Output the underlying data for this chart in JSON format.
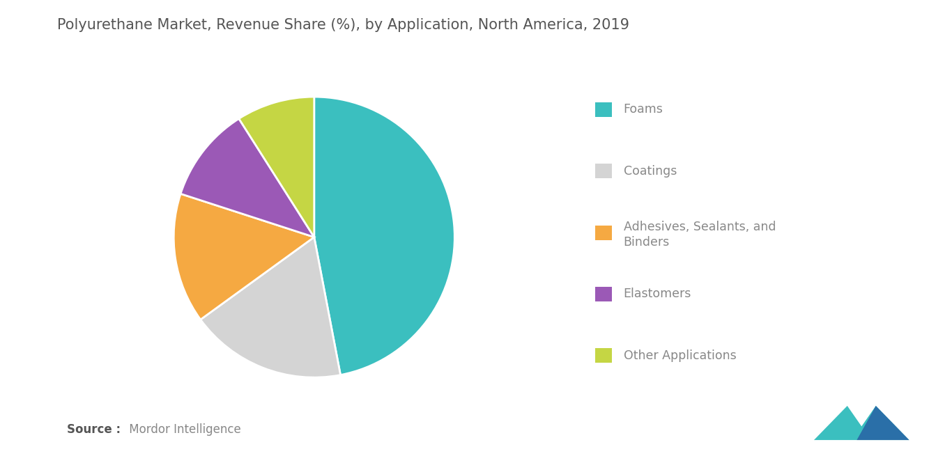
{
  "title": "Polyurethane Market, Revenue Share (%), by Application, North America, 2019",
  "title_fontsize": 15,
  "title_color": "#555555",
  "slices": [
    {
      "label": "Foams",
      "value": 47,
      "color": "#3bbfbf"
    },
    {
      "label": "Coatings",
      "value": 18,
      "color": "#d4d4d4"
    },
    {
      "label": "Adhesives, Sealants, and\nBinders",
      "value": 15,
      "color": "#f5a942"
    },
    {
      "label": "Elastomers",
      "value": 11,
      "color": "#9b59b6"
    },
    {
      "label": "Other Applications",
      "value": 9,
      "color": "#c5d644"
    }
  ],
  "legend_labels_line1": [
    "Foams",
    "Coatings",
    "Adhesives, Sealants, and",
    "Elastomers",
    "Other Applications"
  ],
  "legend_labels_line2": [
    "",
    "",
    "Binders",
    "",
    ""
  ],
  "legend_colors": [
    "#3bbfbf",
    "#d4d4d4",
    "#f5a942",
    "#9b59b6",
    "#c5d644"
  ],
  "source_bold": "Source :",
  "source_normal": " Mordor Intelligence",
  "background_color": "#ffffff",
  "logo_color1": "#3bbfbf",
  "logo_color2": "#2a6fa8"
}
